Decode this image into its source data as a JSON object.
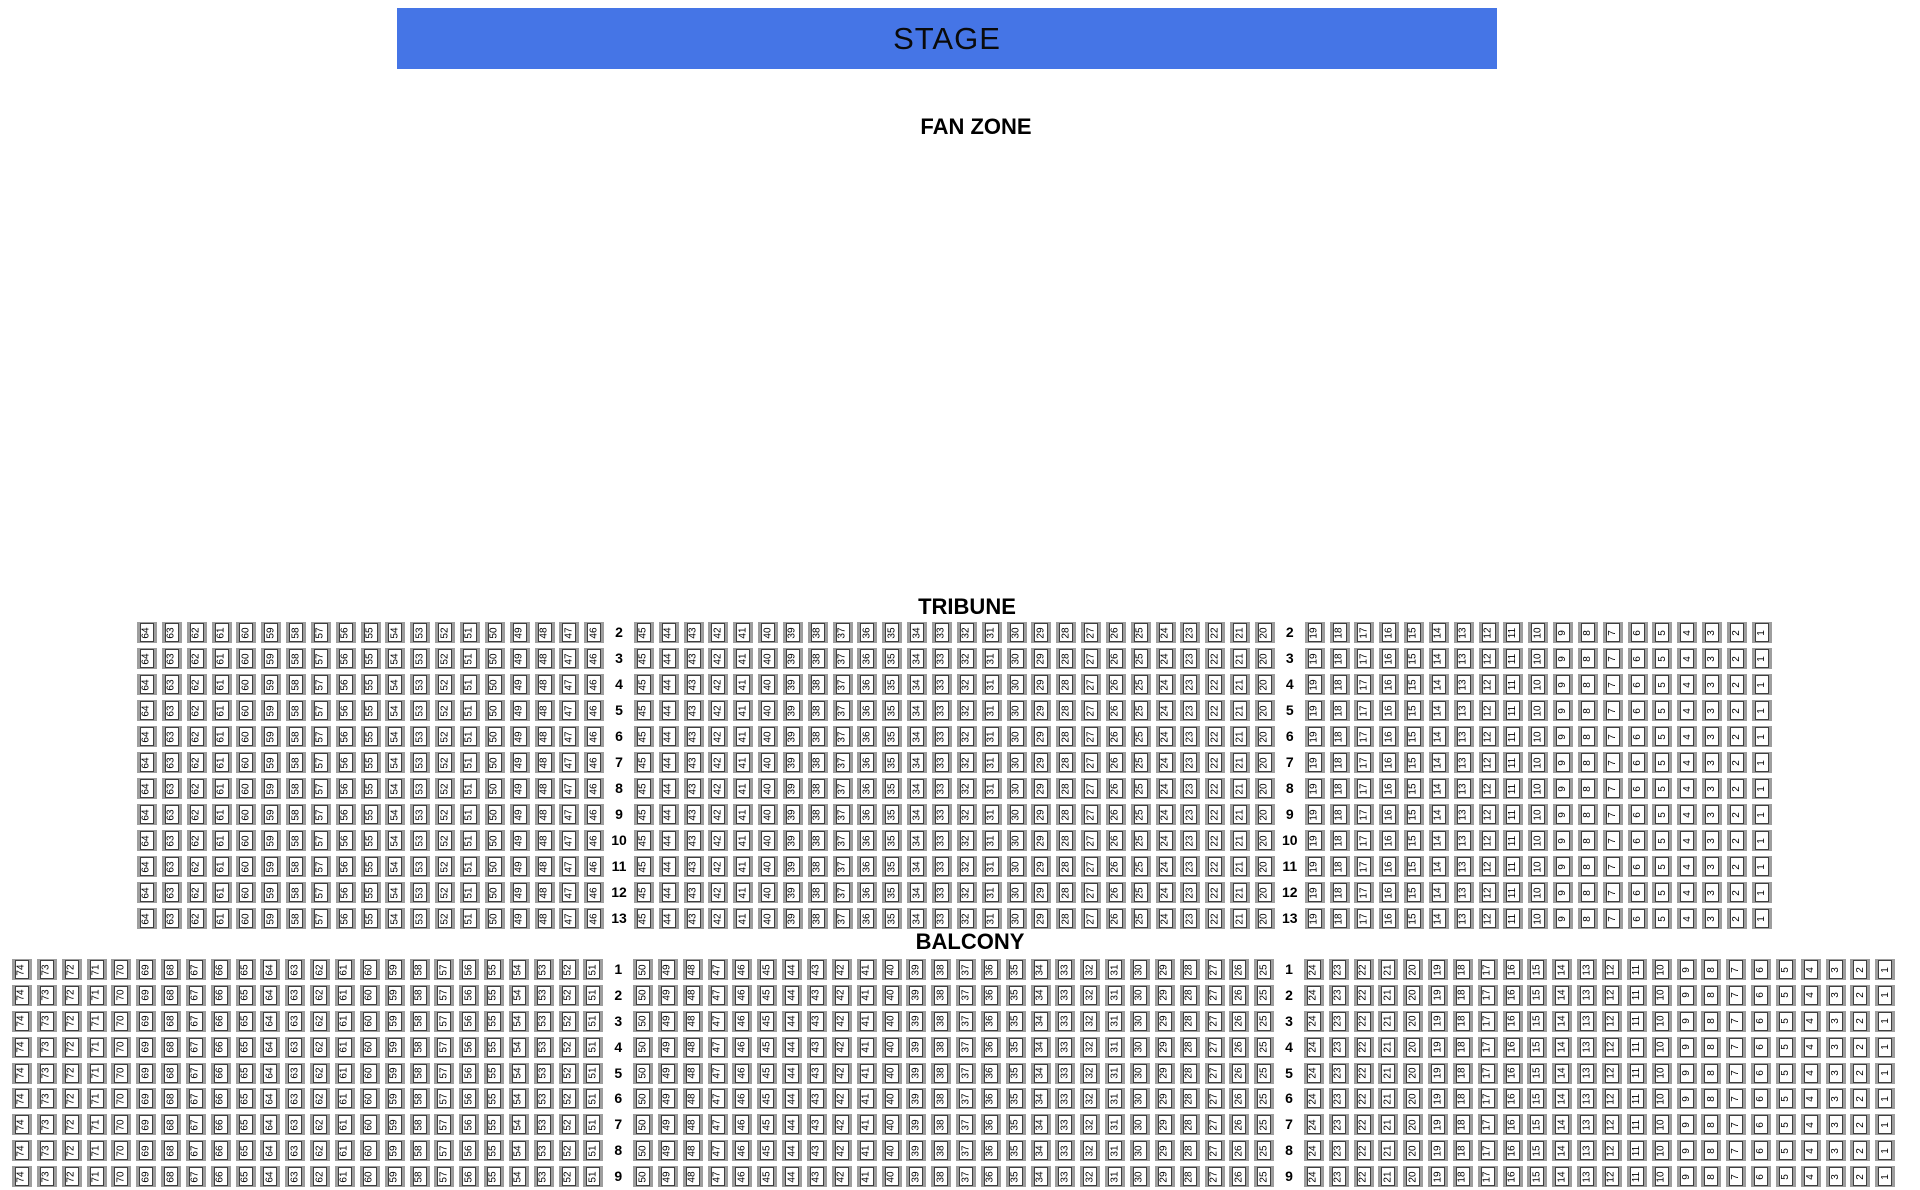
{
  "stage": {
    "label": "STAGE",
    "color": "#4575e6"
  },
  "seat_style": {
    "frame_color": "#9e9e9e",
    "border_color": "#3f3f3f",
    "fill_color": "#ffffff",
    "number_color": "#000000"
  },
  "zones": {
    "fan_zone": {
      "label": "FAN ZONE"
    },
    "tribune": {
      "label": "TRIBUNE",
      "row_labels": [
        2,
        3,
        4,
        5,
        6,
        7,
        8,
        9,
        10,
        11,
        12,
        13
      ],
      "seat_blocks": [
        [
          64,
          63,
          62,
          61,
          60,
          59,
          58,
          57,
          56,
          55,
          54,
          53,
          52,
          51,
          50,
          49,
          48,
          47,
          46
        ],
        [
          45,
          44,
          43,
          42,
          41,
          40,
          39,
          38,
          37,
          36,
          35,
          34,
          33,
          32,
          31,
          30,
          29,
          28,
          27,
          26,
          25,
          24,
          23,
          22,
          21,
          20
        ],
        [
          19,
          18,
          17,
          16,
          15,
          14,
          13,
          12,
          11,
          10,
          9,
          8,
          7,
          6,
          5,
          4,
          3,
          2,
          1
        ]
      ]
    },
    "balcony": {
      "label": "BALCONY",
      "row_labels": [
        1,
        2,
        3,
        4,
        5,
        6,
        7,
        8,
        9
      ],
      "seat_blocks": [
        [
          74,
          73,
          72,
          71,
          70,
          69,
          68,
          67,
          66,
          65,
          64,
          63,
          62,
          61,
          60,
          59,
          58,
          57,
          56,
          55,
          54,
          53,
          52,
          51
        ],
        [
          50,
          49,
          48,
          47,
          46,
          45,
          44,
          43,
          42,
          41,
          40,
          39,
          38,
          37,
          36,
          35,
          34,
          33,
          32,
          31,
          30,
          29,
          28,
          27,
          26,
          25
        ],
        [
          24,
          23,
          22,
          21,
          20,
          19,
          18,
          17,
          16,
          15,
          14,
          13,
          12,
          11,
          10,
          9,
          8,
          7,
          6,
          5,
          4,
          3,
          2,
          1
        ]
      ]
    }
  }
}
